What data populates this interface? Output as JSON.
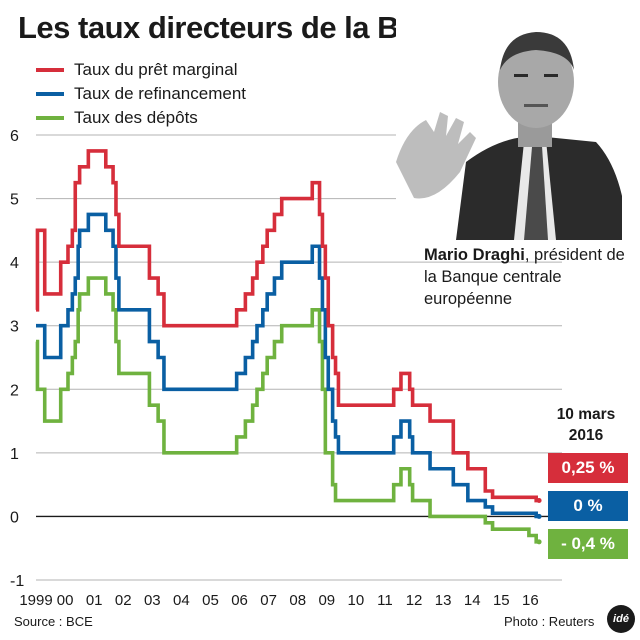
{
  "title": "Les taux directeurs de la BCE",
  "legend": [
    {
      "label": "Taux du prêt marginal",
      "color": "#d62e3b"
    },
    {
      "label": "Taux de refinancement",
      "color": "#0a5fa3"
    },
    {
      "label": "Taux des dépôts",
      "color": "#6fb23f"
    }
  ],
  "caption": {
    "name": "Mario Draghi",
    "text": ", président de la Banque centrale européenne"
  },
  "date_label": {
    "line1": "10 mars",
    "line2": "2016"
  },
  "badges": [
    {
      "text": "0,25 %",
      "color": "#d62e3b",
      "value": 0.25
    },
    {
      "text": "0 %",
      "color": "#0a5fa3",
      "value": 0
    },
    {
      "text": "- 0,4 %",
      "color": "#6fb23f",
      "value": -0.4
    }
  ],
  "footer": {
    "source": "Source : BCE",
    "photo": "Photo : Reuters",
    "logo": "idé"
  },
  "chart_data": {
    "type": "line",
    "title": "Les taux directeurs de la BCE",
    "xlabel": "",
    "ylabel": "",
    "x_range": [
      1999.0,
      2016.4
    ],
    "ylim": [
      -1,
      6
    ],
    "yticks": [
      -1,
      0,
      1,
      2,
      3,
      4,
      5,
      6
    ],
    "xtick_labels": [
      {
        "label": "1999",
        "x": 1999.0
      },
      {
        "label": "00",
        "x": 2000.0
      },
      {
        "label": "01",
        "x": 2001.0
      },
      {
        "label": "02",
        "x": 2002.0
      },
      {
        "label": "03",
        "x": 2003.0
      },
      {
        "label": "04",
        "x": 2004.0
      },
      {
        "label": "05",
        "x": 2005.0
      },
      {
        "label": "06",
        "x": 2006.0
      },
      {
        "label": "07",
        "x": 2007.0
      },
      {
        "label": "08",
        "x": 2008.0
      },
      {
        "label": "09",
        "x": 2009.0
      },
      {
        "label": "10",
        "x": 2010.0
      },
      {
        "label": "11",
        "x": 2011.0
      },
      {
        "label": "12",
        "x": 2012.0
      },
      {
        "label": "13",
        "x": 2013.0
      },
      {
        "label": "14",
        "x": 2014.0
      },
      {
        "label": "15",
        "x": 2015.0
      },
      {
        "label": "16",
        "x": 2016.0
      }
    ],
    "grid": "horizontal",
    "zero_line": true,
    "series": [
      {
        "name": "Taux du prêt marginal",
        "color": "#d62e3b",
        "steps": [
          [
            1999.0,
            3.25
          ],
          [
            1999.05,
            4.5
          ],
          [
            1999.3,
            3.5
          ],
          [
            1999.85,
            4.0
          ],
          [
            2000.1,
            4.25
          ],
          [
            2000.25,
            4.5
          ],
          [
            2000.35,
            5.25
          ],
          [
            2000.5,
            5.5
          ],
          [
            2000.8,
            5.75
          ],
          [
            2001.4,
            5.5
          ],
          [
            2001.65,
            5.25
          ],
          [
            2001.75,
            4.75
          ],
          [
            2001.85,
            4.25
          ],
          [
            2002.9,
            3.75
          ],
          [
            2003.2,
            3.5
          ],
          [
            2003.4,
            3.0
          ],
          [
            2005.9,
            3.25
          ],
          [
            2006.2,
            3.5
          ],
          [
            2006.45,
            3.75
          ],
          [
            2006.6,
            4.0
          ],
          [
            2006.8,
            4.25
          ],
          [
            2006.95,
            4.5
          ],
          [
            2007.2,
            4.75
          ],
          [
            2007.45,
            5.0
          ],
          [
            2008.5,
            5.25
          ],
          [
            2008.75,
            4.75
          ],
          [
            2008.85,
            4.25
          ],
          [
            2008.95,
            3.75
          ],
          [
            2009.05,
            3.0
          ],
          [
            2009.2,
            2.5
          ],
          [
            2009.3,
            2.25
          ],
          [
            2009.4,
            1.75
          ],
          [
            2011.3,
            2.0
          ],
          [
            2011.55,
            2.25
          ],
          [
            2011.85,
            2.0
          ],
          [
            2011.95,
            1.75
          ],
          [
            2012.55,
            1.5
          ],
          [
            2013.35,
            1.0
          ],
          [
            2013.85,
            0.75
          ],
          [
            2014.45,
            0.4
          ],
          [
            2014.7,
            0.3
          ],
          [
            2015.95,
            0.3
          ],
          [
            2016.2,
            0.25
          ],
          [
            2016.3,
            0.25
          ]
        ]
      },
      {
        "name": "Taux de refinancement",
        "color": "#0a5fa3",
        "steps": [
          [
            1999.0,
            3.0
          ],
          [
            1999.3,
            2.5
          ],
          [
            1999.85,
            3.0
          ],
          [
            2000.1,
            3.25
          ],
          [
            2000.25,
            3.5
          ],
          [
            2000.35,
            3.75
          ],
          [
            2000.45,
            4.25
          ],
          [
            2000.5,
            4.5
          ],
          [
            2000.8,
            4.75
          ],
          [
            2001.4,
            4.5
          ],
          [
            2001.65,
            4.25
          ],
          [
            2001.75,
            3.75
          ],
          [
            2001.85,
            3.25
          ],
          [
            2002.9,
            2.75
          ],
          [
            2003.2,
            2.5
          ],
          [
            2003.4,
            2.0
          ],
          [
            2005.9,
            2.25
          ],
          [
            2006.2,
            2.5
          ],
          [
            2006.45,
            2.75
          ],
          [
            2006.6,
            3.0
          ],
          [
            2006.8,
            3.25
          ],
          [
            2006.95,
            3.5
          ],
          [
            2007.2,
            3.75
          ],
          [
            2007.45,
            4.0
          ],
          [
            2008.5,
            4.25
          ],
          [
            2008.75,
            3.75
          ],
          [
            2008.85,
            3.25
          ],
          [
            2008.95,
            2.5
          ],
          [
            2009.05,
            2.0
          ],
          [
            2009.2,
            1.5
          ],
          [
            2009.3,
            1.25
          ],
          [
            2009.4,
            1.0
          ],
          [
            2011.3,
            1.25
          ],
          [
            2011.55,
            1.5
          ],
          [
            2011.85,
            1.25
          ],
          [
            2011.95,
            1.0
          ],
          [
            2012.55,
            0.75
          ],
          [
            2013.35,
            0.5
          ],
          [
            2013.85,
            0.25
          ],
          [
            2014.45,
            0.15
          ],
          [
            2014.7,
            0.05
          ],
          [
            2016.2,
            0.0
          ],
          [
            2016.3,
            0.0
          ]
        ]
      },
      {
        "name": "Taux des dépôts",
        "color": "#6fb23f",
        "steps": [
          [
            1999.0,
            2.75
          ],
          [
            1999.05,
            2.0
          ],
          [
            1999.3,
            1.5
          ],
          [
            1999.85,
            2.0
          ],
          [
            2000.1,
            2.25
          ],
          [
            2000.25,
            2.5
          ],
          [
            2000.35,
            2.75
          ],
          [
            2000.45,
            3.25
          ],
          [
            2000.5,
            3.5
          ],
          [
            2000.8,
            3.75
          ],
          [
            2001.4,
            3.5
          ],
          [
            2001.65,
            3.25
          ],
          [
            2001.75,
            2.75
          ],
          [
            2001.85,
            2.25
          ],
          [
            2002.9,
            1.75
          ],
          [
            2003.2,
            1.5
          ],
          [
            2003.4,
            1.0
          ],
          [
            2005.9,
            1.25
          ],
          [
            2006.2,
            1.5
          ],
          [
            2006.45,
            1.75
          ],
          [
            2006.6,
            2.0
          ],
          [
            2006.8,
            2.25
          ],
          [
            2006.95,
            2.5
          ],
          [
            2007.2,
            2.75
          ],
          [
            2007.45,
            3.0
          ],
          [
            2008.5,
            3.25
          ],
          [
            2008.75,
            2.75
          ],
          [
            2008.85,
            2.0
          ],
          [
            2008.95,
            1.0
          ],
          [
            2009.05,
            1.0
          ],
          [
            2009.2,
            0.5
          ],
          [
            2009.3,
            0.25
          ],
          [
            2011.3,
            0.5
          ],
          [
            2011.55,
            0.75
          ],
          [
            2011.85,
            0.5
          ],
          [
            2011.95,
            0.25
          ],
          [
            2012.55,
            0.0
          ],
          [
            2014.45,
            -0.1
          ],
          [
            2014.7,
            -0.2
          ],
          [
            2015.95,
            -0.3
          ],
          [
            2016.2,
            -0.4
          ],
          [
            2016.3,
            -0.4
          ]
        ]
      }
    ]
  }
}
